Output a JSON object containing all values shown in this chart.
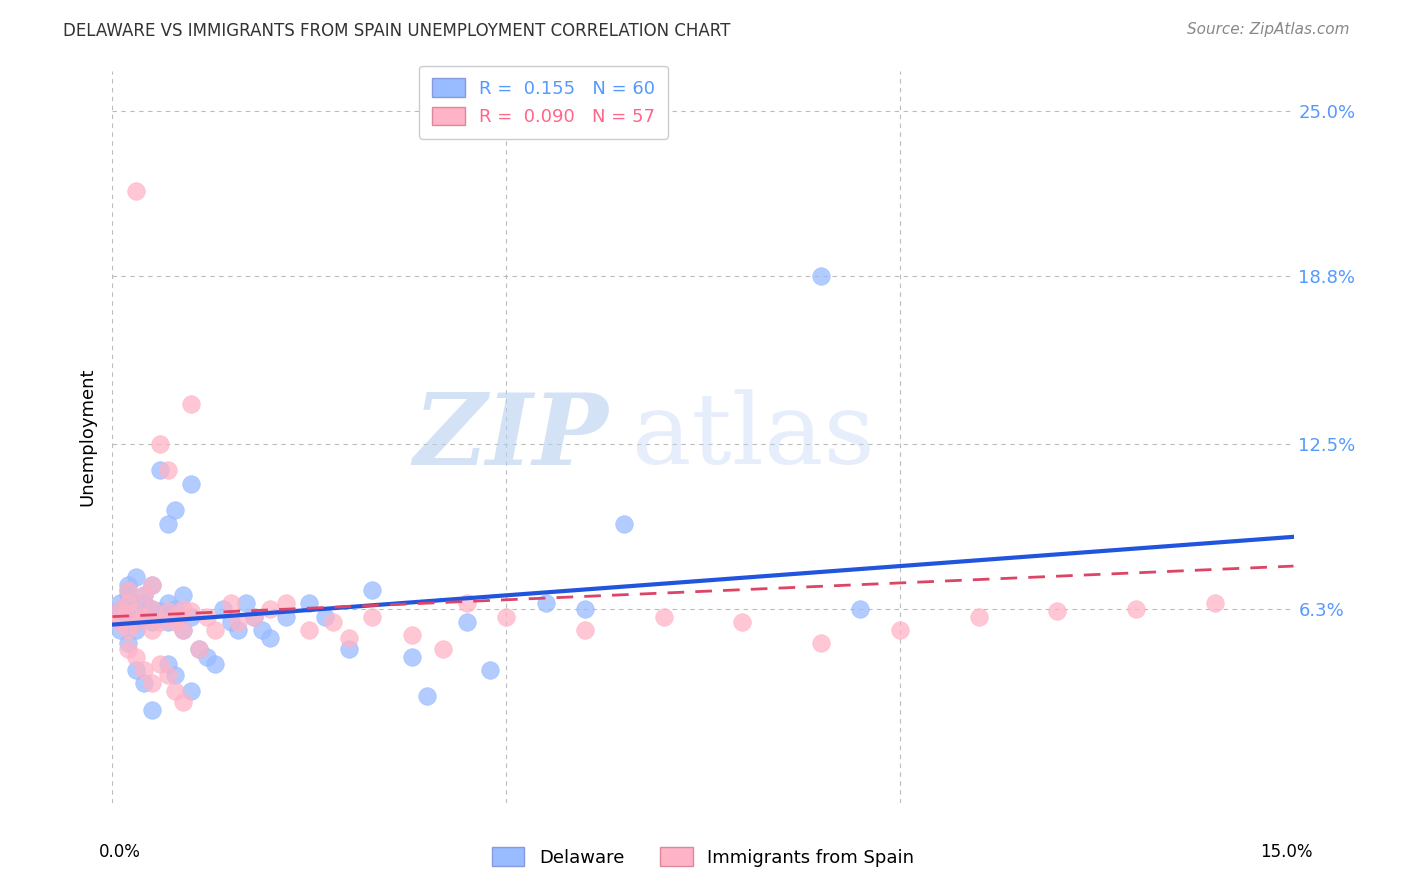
{
  "title": "DELAWARE VS IMMIGRANTS FROM SPAIN UNEMPLOYMENT CORRELATION CHART",
  "source": "Source: ZipAtlas.com",
  "ylabel": "Unemployment",
  "ytick_labels": [
    "6.3%",
    "12.5%",
    "18.8%",
    "25.0%"
  ],
  "ytick_values": [
    0.063,
    0.125,
    0.188,
    0.25
  ],
  "xmin": 0.0,
  "xmax": 0.15,
  "ymin": -0.01,
  "ymax": 0.265,
  "color_delaware": "#99BBFF",
  "color_spain": "#FFB3C6",
  "color_delaware_line": "#2255DD",
  "color_spain_line": "#DD4466",
  "watermark_zip": "ZIP",
  "watermark_atlas": "atlas",
  "delaware_x": [
    0.001,
    0.001,
    0.001,
    0.002,
    0.002,
    0.002,
    0.002,
    0.003,
    0.003,
    0.003,
    0.003,
    0.004,
    0.004,
    0.004,
    0.005,
    0.005,
    0.005,
    0.006,
    0.006,
    0.007,
    0.007,
    0.007,
    0.008,
    0.008,
    0.009,
    0.009,
    0.01,
    0.01,
    0.011,
    0.012,
    0.013,
    0.014,
    0.015,
    0.016,
    0.017,
    0.018,
    0.019,
    0.02,
    0.022,
    0.025,
    0.027,
    0.03,
    0.033,
    0.038,
    0.04,
    0.045,
    0.048,
    0.055,
    0.06,
    0.065,
    0.001,
    0.002,
    0.003,
    0.004,
    0.005,
    0.007,
    0.008,
    0.01,
    0.09,
    0.095
  ],
  "delaware_y": [
    0.063,
    0.065,
    0.062,
    0.068,
    0.07,
    0.06,
    0.072,
    0.063,
    0.058,
    0.075,
    0.055,
    0.065,
    0.06,
    0.068,
    0.063,
    0.058,
    0.072,
    0.062,
    0.115,
    0.065,
    0.058,
    0.095,
    0.063,
    0.1,
    0.068,
    0.055,
    0.06,
    0.11,
    0.048,
    0.045,
    0.042,
    0.063,
    0.058,
    0.055,
    0.065,
    0.06,
    0.055,
    0.052,
    0.06,
    0.065,
    0.06,
    0.048,
    0.07,
    0.045,
    0.03,
    0.058,
    0.04,
    0.065,
    0.063,
    0.095,
    0.055,
    0.05,
    0.04,
    0.035,
    0.025,
    0.042,
    0.038,
    0.032,
    0.188,
    0.063
  ],
  "spain_x": [
    0.001,
    0.001,
    0.001,
    0.002,
    0.002,
    0.002,
    0.003,
    0.003,
    0.003,
    0.004,
    0.004,
    0.005,
    0.005,
    0.005,
    0.006,
    0.006,
    0.007,
    0.007,
    0.008,
    0.008,
    0.009,
    0.009,
    0.01,
    0.01,
    0.011,
    0.012,
    0.013,
    0.015,
    0.016,
    0.018,
    0.02,
    0.022,
    0.025,
    0.028,
    0.03,
    0.033,
    0.038,
    0.042,
    0.045,
    0.05,
    0.002,
    0.003,
    0.004,
    0.005,
    0.006,
    0.007,
    0.008,
    0.009,
    0.06,
    0.07,
    0.08,
    0.09,
    0.1,
    0.11,
    0.12,
    0.13,
    0.14
  ],
  "spain_y": [
    0.063,
    0.06,
    0.058,
    0.065,
    0.07,
    0.055,
    0.062,
    0.058,
    0.22,
    0.068,
    0.06,
    0.063,
    0.055,
    0.072,
    0.058,
    0.125,
    0.062,
    0.115,
    0.058,
    0.06,
    0.063,
    0.055,
    0.062,
    0.14,
    0.048,
    0.06,
    0.055,
    0.065,
    0.058,
    0.06,
    0.063,
    0.065,
    0.055,
    0.058,
    0.052,
    0.06,
    0.053,
    0.048,
    0.065,
    0.06,
    0.048,
    0.045,
    0.04,
    0.035,
    0.042,
    0.038,
    0.032,
    0.028,
    0.055,
    0.06,
    0.058,
    0.05,
    0.055,
    0.06,
    0.062,
    0.063,
    0.065
  ],
  "delaware_line_x0": 0.0,
  "delaware_line_y0": 0.057,
  "delaware_line_x1": 0.15,
  "delaware_line_y1": 0.09,
  "spain_line_x0": 0.0,
  "spain_line_y0": 0.06,
  "spain_line_x1": 0.15,
  "spain_line_y1": 0.079
}
